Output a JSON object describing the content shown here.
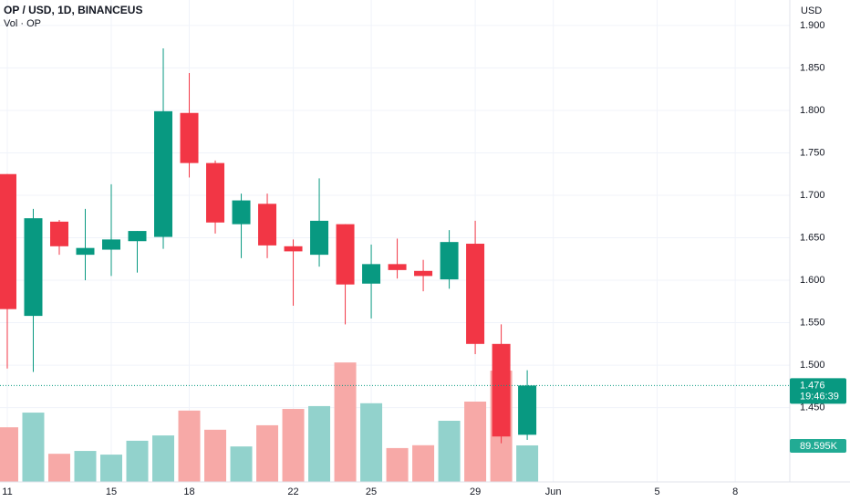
{
  "chart_data": {
    "type": "candlestick",
    "title": "OP / USD, 1D, BINANCEUS",
    "subtitle": "Vol · OP",
    "y_axis_label": "USD",
    "x": [
      11,
      12,
      13,
      14,
      15,
      16,
      17,
      18,
      19,
      20,
      21,
      22,
      23,
      24,
      25,
      26,
      27,
      28,
      29,
      30,
      31
    ],
    "open": [
      1.725,
      1.558,
      1.669,
      1.63,
      1.636,
      1.646,
      1.651,
      1.797,
      1.738,
      1.666,
      1.69,
      1.64,
      1.63,
      1.666,
      1.596,
      1.619,
      1.611,
      1.601,
      1.643,
      1.525,
      1.418
    ],
    "high": [
      1.725,
      1.684,
      1.671,
      1.684,
      1.713,
      1.658,
      1.873,
      1.844,
      1.741,
      1.702,
      1.702,
      1.648,
      1.72,
      1.666,
      1.642,
      1.649,
      1.624,
      1.659,
      1.67,
      1.548,
      1.494
    ],
    "low": [
      1.496,
      1.492,
      1.63,
      1.6,
      1.605,
      1.609,
      1.637,
      1.721,
      1.655,
      1.626,
      1.626,
      1.57,
      1.616,
      1.548,
      1.555,
      1.602,
      1.587,
      1.59,
      1.513,
      1.408,
      1.412
    ],
    "close": [
      1.566,
      1.673,
      1.64,
      1.638,
      1.648,
      1.658,
      1.799,
      1.738,
      1.668,
      1.694,
      1.641,
      1.634,
      1.67,
      1.595,
      1.619,
      1.612,
      1.605,
      1.645,
      1.525,
      1.416,
      1.476
    ],
    "volume": [
      134000,
      170000,
      69000,
      76000,
      67000,
      101000,
      114000,
      175000,
      128000,
      87000,
      139000,
      179000,
      186000,
      293000,
      193000,
      83000,
      90000,
      150000,
      197000,
      273000,
      89595
    ],
    "volume_lim": [
      0,
      300000
    ],
    "last_close_label": "1.476",
    "countdown": "19:46:39",
    "last_volume_label": "89.595K",
    "up_color": "#089981",
    "down_color": "#f23645",
    "up_volume_color": "#92d2cc",
    "down_volume_color": "#f7a9a7",
    "xlim": [
      10.72,
      41.1
    ],
    "xticks": [
      11,
      15,
      18,
      22,
      25,
      29,
      {
        "value": 32,
        "label": "Jun"
      },
      {
        "value": 36,
        "label": "5"
      },
      {
        "value": 39,
        "label": "8"
      }
    ],
    "ylim": [
      1.3625,
      1.93
    ],
    "yticks": [
      {
        "value": 1.9,
        "label": "1.900"
      },
      {
        "value": 1.85,
        "label": "1.850"
      },
      {
        "value": 1.8,
        "label": "1.800"
      },
      {
        "value": 1.75,
        "label": "1.750"
      },
      {
        "value": 1.7,
        "label": "1.700"
      },
      {
        "value": 1.65,
        "label": "1.650"
      },
      {
        "value": 1.6,
        "label": "1.600"
      },
      {
        "value": 1.55,
        "label": "1.550"
      },
      {
        "value": 1.5,
        "label": "1.500"
      },
      {
        "value": 1.45,
        "label": "1.450"
      }
    ],
    "grid": true
  }
}
